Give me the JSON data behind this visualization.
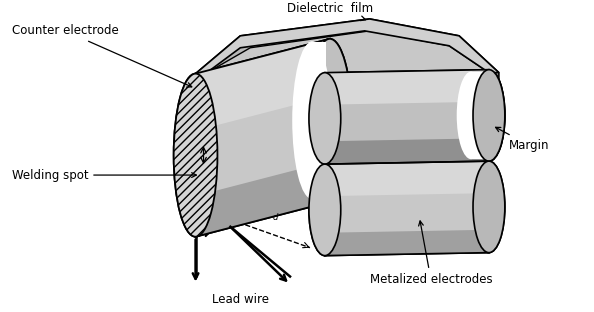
{
  "labels": {
    "counter_electrode": "Counter electrode",
    "dielectric_film": "Dielectric  film",
    "welding_spot": "Welding spot",
    "margin": "Margin",
    "metalized_electrodes": "Metalized electrodes",
    "lead_wire": "Lead wire"
  },
  "colors": {
    "background": "#ffffff",
    "cyl_side": "#c0c0c0",
    "cyl_dark": "#8a8a8a",
    "cyl_light": "#d8d8d8",
    "cyl_end": "#b8b8b8",
    "film_top": "#c0c0c0",
    "film_side": "#a8a8a8",
    "white": "#ffffff",
    "black": "#000000"
  },
  "figsize": [
    5.94,
    3.12
  ],
  "dpi": 100
}
